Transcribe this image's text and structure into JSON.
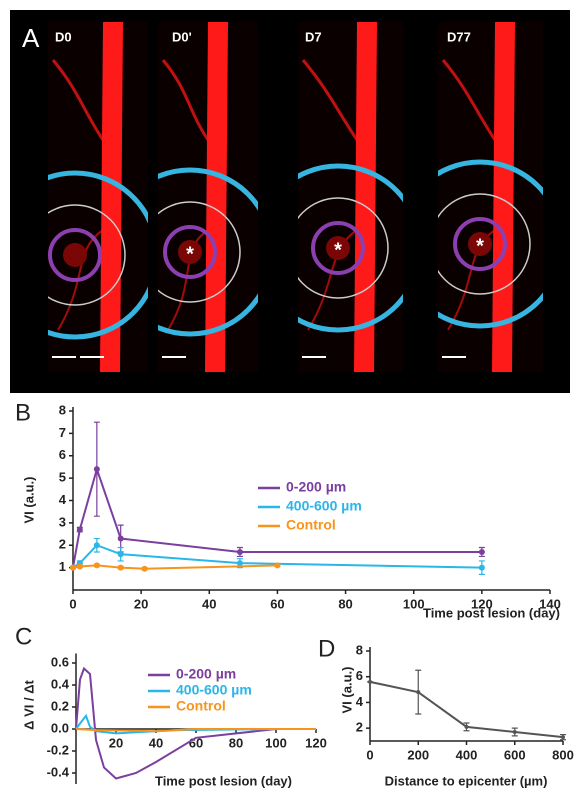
{
  "panel_a": {
    "panel_label": "A",
    "images": [
      {
        "label": "D0"
      },
      {
        "label": "D0'",
        "mark": "*"
      },
      {
        "label": "D7",
        "mark": "*"
      },
      {
        "label": "D77",
        "mark": "*"
      }
    ]
  },
  "chart_data": [
    {
      "type": "line",
      "panel_label": "B",
      "ylabel": "VI (a.u.)",
      "xlabel": "Time post lesion (day)",
      "xlim": [
        0,
        140
      ],
      "xticks": [
        0,
        20,
        40,
        60,
        80,
        100,
        120,
        140
      ],
      "ylim": [
        0,
        8
      ],
      "yticks": [
        1,
        2,
        3,
        4,
        5,
        6,
        7,
        8
      ],
      "markers": true,
      "series": [
        {
          "name": "0-200 µm",
          "color": "#7b3f9e",
          "x": [
            0,
            2,
            7,
            14,
            49,
            120
          ],
          "values": [
            1,
            2.7,
            5.4,
            2.3,
            1.7,
            1.7
          ],
          "errors": [
            0,
            0.1,
            2.1,
            0.6,
            0.2,
            0.2
          ]
        },
        {
          "name": "400-600 µm",
          "color": "#29b6e8",
          "x": [
            0,
            2,
            7,
            14,
            49,
            120
          ],
          "values": [
            1,
            1.2,
            2,
            1.6,
            1.2,
            1.0
          ],
          "errors": [
            0,
            0.1,
            0.3,
            0.3,
            0.2,
            0.3
          ]
        },
        {
          "name": "Control",
          "color": "#f7941d",
          "x": [
            0,
            2,
            7,
            14,
            21,
            60
          ],
          "values": [
            1,
            1.05,
            1.1,
            1.0,
            0.95,
            1.1
          ],
          "errors": [
            0,
            0.05,
            0.05,
            0.05,
            0.05,
            0.05
          ]
        }
      ]
    },
    {
      "type": "line",
      "panel_label": "C",
      "ylabel": "Δ VI / Δt",
      "xlabel": "Time post lesion (day)",
      "xlim": [
        0,
        120
      ],
      "xticks": [
        20,
        40,
        60,
        80,
        100,
        120
      ],
      "ylim": [
        -0.5,
        0.65
      ],
      "yticks": [
        0.6,
        0.4,
        0.2,
        {
          "value": 0,
          "label": "0.0"
        },
        -0.2,
        -0.4
      ],
      "markers": false,
      "series": [
        {
          "name": "0-200 µm",
          "color": "#7b3f9e",
          "x": [
            0,
            2,
            4,
            7,
            10,
            14,
            20,
            30,
            40,
            60,
            100
          ],
          "values": [
            0,
            0.45,
            0.55,
            0.5,
            -0.1,
            -0.35,
            -0.45,
            -0.4,
            -0.3,
            -0.08,
            0
          ]
        },
        {
          "name": "400-600 µm",
          "color": "#29b6e8",
          "x": [
            0,
            2,
            5,
            7,
            10,
            20,
            50,
            100
          ],
          "values": [
            0,
            0.05,
            0.12,
            0.02,
            -0.02,
            -0.04,
            -0.01,
            0
          ]
        },
        {
          "name": "Control",
          "color": "#f7941d",
          "x": [
            0,
            10,
            40,
            60,
            120
          ],
          "values": [
            0,
            -0.01,
            -0.02,
            0,
            0
          ]
        }
      ]
    },
    {
      "type": "line",
      "panel_label": "D",
      "ylabel": "VI (a.u.)",
      "xlabel": "Distance to epicenter (µm)",
      "xlim": [
        0,
        800
      ],
      "xticks": [
        0,
        200,
        400,
        600,
        800
      ],
      "ylim": [
        1,
        8
      ],
      "yticks": [
        2,
        4,
        6,
        8
      ],
      "markers": true,
      "color": "#555555",
      "x": [
        0,
        200,
        400,
        600,
        800
      ],
      "values": [
        5.6,
        4.8,
        2.1,
        1.7,
        1.3
      ],
      "errors": [
        0,
        1.7,
        0.3,
        0.3,
        0.2
      ]
    }
  ]
}
